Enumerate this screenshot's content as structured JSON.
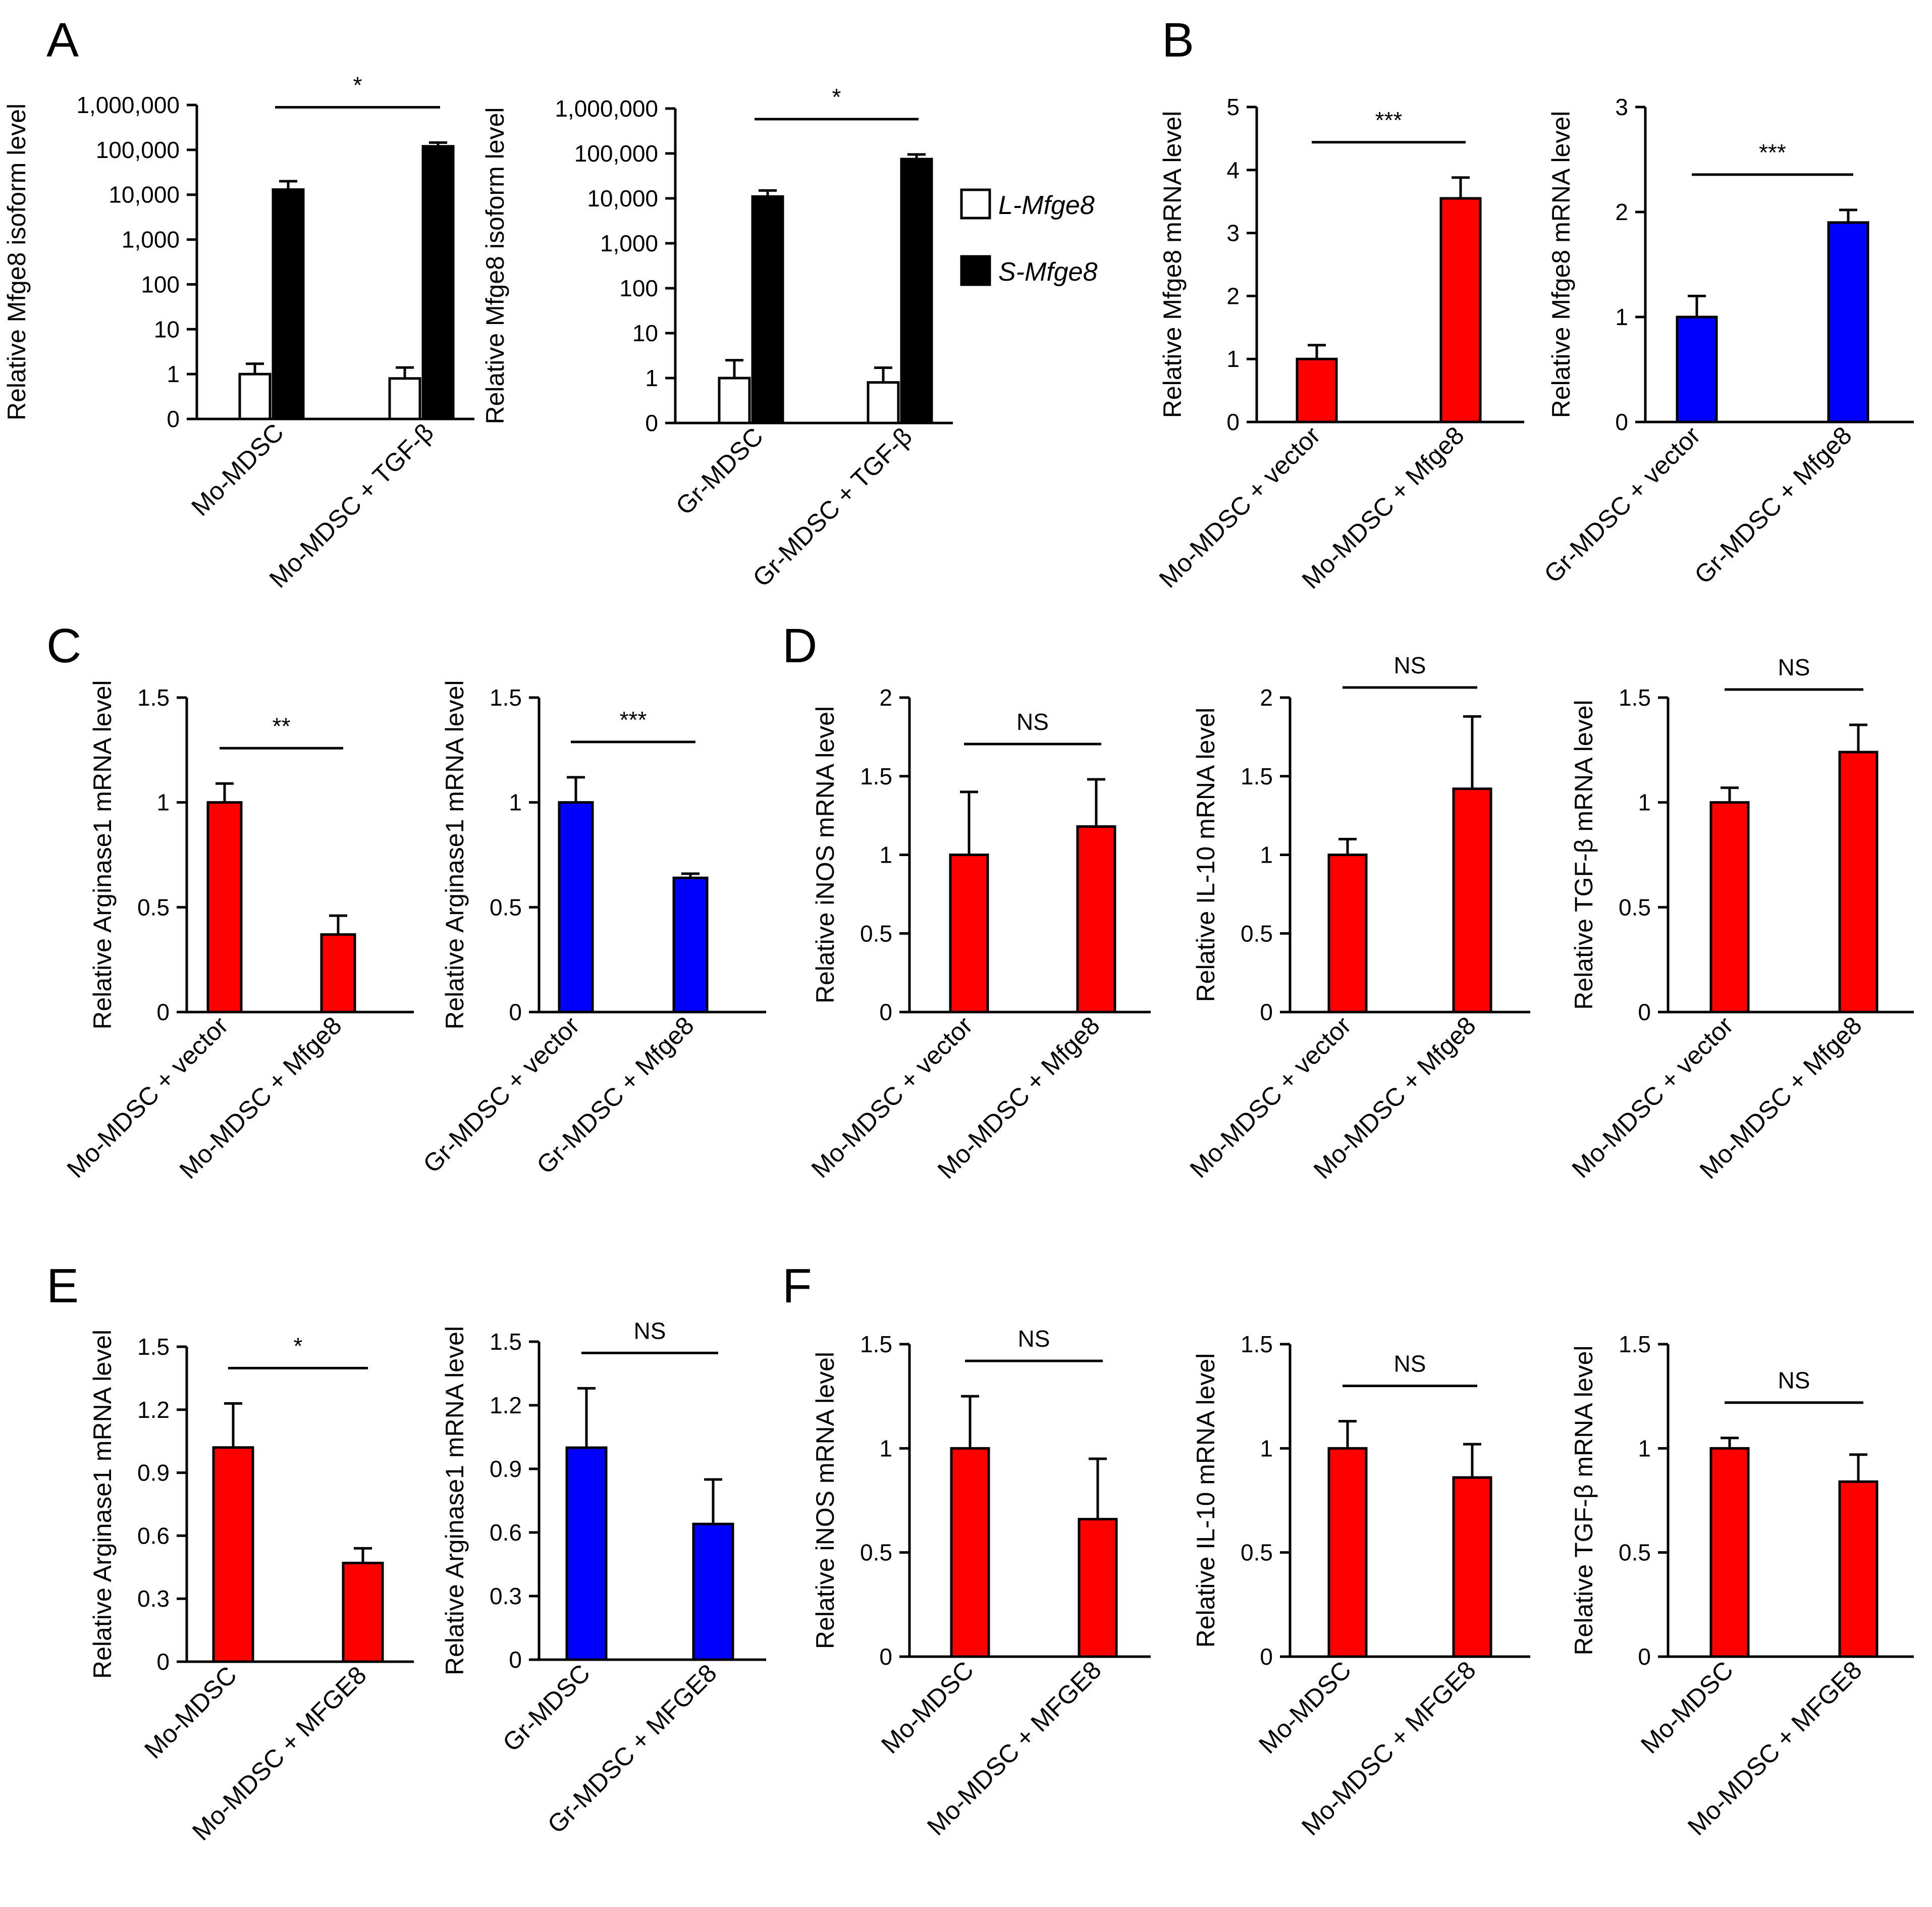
{
  "panel_letters": [
    "A",
    "B",
    "C",
    "D",
    "E",
    "F"
  ],
  "legend": [
    {
      "label": "L-Mfge8",
      "color": "#ffffff"
    },
    {
      "label": "S-Mfge8",
      "color": "#000000"
    }
  ],
  "colors": {
    "red": "#ff0000",
    "blue": "#0000ff",
    "black": "#000000",
    "white": "#ffffff"
  },
  "chart_data": [
    {
      "panel": "A",
      "type": "bar",
      "scale": "log",
      "ylabel": "Relative Mfge8 isoform level",
      "categories": [
        "Mo-MDSC",
        "Mo-MDSC + TGF-β"
      ],
      "series": [
        {
          "name": "L-Mfge8",
          "color": "#ffffff",
          "values": [
            1,
            0.8
          ],
          "errors": [
            0.7,
            0.6
          ]
        },
        {
          "name": "S-Mfge8",
          "color": "#000000",
          "values": [
            13000,
            120000
          ],
          "errors": [
            7000,
            25000
          ]
        }
      ],
      "yticks": [
        0,
        1,
        10,
        100,
        1000,
        10000,
        100000,
        1000000
      ],
      "ytick_labels": [
        "0",
        "1",
        "10",
        "100",
        "1,000",
        "10,000",
        "100,000",
        "1,000,000"
      ],
      "significance": "*"
    },
    {
      "panel": "A",
      "type": "bar",
      "scale": "log",
      "ylabel": "Relative Mfge8 isoform level",
      "categories": [
        "Gr-MDSC",
        "Gr-MDSC + TGF-β"
      ],
      "series": [
        {
          "name": "L-Mfge8",
          "color": "#ffffff",
          "values": [
            1,
            0.8
          ],
          "errors": [
            1.5,
            0.9
          ]
        },
        {
          "name": "S-Mfge8",
          "color": "#000000",
          "values": [
            11000,
            75000
          ],
          "errors": [
            4000,
            20000
          ]
        }
      ],
      "yticks": [
        0,
        1,
        10,
        100,
        1000,
        10000,
        100000,
        1000000
      ],
      "ytick_labels": [
        "0",
        "1",
        "10",
        "100",
        "1,000",
        "10,000",
        "100,000",
        "1,000,000"
      ],
      "significance": "*"
    },
    {
      "panel": "B",
      "type": "bar",
      "ylabel": "Relative Mfge8 mRNA level",
      "categories": [
        "Mo-MDSC + vector",
        "Mo-MDSC + Mfge8"
      ],
      "values": [
        1.0,
        3.55
      ],
      "errors": [
        0.22,
        0.33
      ],
      "color": "#ff0000",
      "ylim": [
        0,
        5
      ],
      "yticks": [
        0,
        1,
        2,
        3,
        4,
        5
      ],
      "ytick_labels": [
        "0",
        "1",
        "2",
        "3",
        "4",
        "5"
      ],
      "significance": "***"
    },
    {
      "panel": "B",
      "type": "bar",
      "ylabel": "Relative Mfge8 mRNA level",
      "categories": [
        "Gr-MDSC + vector",
        "Gr-MDSC + Mfge8"
      ],
      "values": [
        1.0,
        1.9
      ],
      "errors": [
        0.2,
        0.12
      ],
      "color": "#0000ff",
      "ylim": [
        0,
        3
      ],
      "yticks": [
        0,
        1,
        2,
        3
      ],
      "ytick_labels": [
        "0",
        "1",
        "2",
        "3"
      ],
      "significance": "***"
    },
    {
      "panel": "C",
      "type": "bar",
      "ylabel": "Relative Arginase1 mRNA level",
      "categories": [
        "Mo-MDSC + vector",
        "Mo-MDSC + Mfge8"
      ],
      "values": [
        1.0,
        0.37
      ],
      "errors": [
        0.09,
        0.09
      ],
      "color": "#ff0000",
      "ylim": [
        0,
        1.5
      ],
      "yticks": [
        0,
        0.5,
        1,
        1.5
      ],
      "ytick_labels": [
        "0",
        "0.5",
        "1",
        "1.5"
      ],
      "significance": "**"
    },
    {
      "panel": "C",
      "type": "bar",
      "ylabel": "Relative Arginase1 mRNA level",
      "categories": [
        "Gr-MDSC + vector",
        "Gr-MDSC + Mfge8"
      ],
      "values": [
        1.0,
        0.64
      ],
      "errors": [
        0.12,
        0.02
      ],
      "color": "#0000ff",
      "ylim": [
        0,
        1.5
      ],
      "yticks": [
        0,
        0.5,
        1,
        1.5
      ],
      "ytick_labels": [
        "0",
        "0.5",
        "1",
        "1.5"
      ],
      "significance": "***"
    },
    {
      "panel": "D",
      "type": "bar",
      "ylabel": "Relative iNOS mRNA level",
      "categories": [
        "Mo-MDSC + vector",
        "Mo-MDSC + Mfge8"
      ],
      "values": [
        1.0,
        1.18
      ],
      "errors": [
        0.4,
        0.3
      ],
      "color": "#ff0000",
      "ylim": [
        0,
        2
      ],
      "yticks": [
        0,
        0.5,
        1,
        1.5,
        2
      ],
      "ytick_labels": [
        "0",
        "0.5",
        "1",
        "1.5",
        "2"
      ],
      "significance": "NS"
    },
    {
      "panel": "D",
      "type": "bar",
      "ylabel": "Relative IL-10 mRNA level",
      "categories": [
        "Mo-MDSC + vector",
        "Mo-MDSC + Mfge8"
      ],
      "values": [
        1.0,
        1.42
      ],
      "errors": [
        0.1,
        0.46
      ],
      "color": "#ff0000",
      "ylim": [
        0,
        2
      ],
      "yticks": [
        0,
        0.5,
        1,
        1.5,
        2
      ],
      "ytick_labels": [
        "0",
        "0.5",
        "1",
        "1.5",
        "2"
      ],
      "significance": "NS"
    },
    {
      "panel": "D",
      "type": "bar",
      "ylabel": "Relative TGF-β mRNA level",
      "categories": [
        "Mo-MDSC + vector",
        "Mo-MDSC + Mfge8"
      ],
      "values": [
        1.0,
        1.24
      ],
      "errors": [
        0.07,
        0.13
      ],
      "color": "#ff0000",
      "ylim": [
        0,
        1.5
      ],
      "yticks": [
        0,
        0.5,
        1,
        1.5
      ],
      "ytick_labels": [
        "0",
        "0.5",
        "1",
        "1.5"
      ],
      "significance": "NS"
    },
    {
      "panel": "E",
      "type": "bar",
      "ylabel": "Relative Arginase1 mRNA level",
      "categories": [
        "Mo-MDSC",
        "Mo-MDSC + MFGE8"
      ],
      "values": [
        1.02,
        0.47
      ],
      "errors": [
        0.21,
        0.07
      ],
      "color": "#ff0000",
      "ylim": [
        0,
        1.5
      ],
      "yticks": [
        0,
        0.3,
        0.6,
        0.9,
        1.2,
        1.5
      ],
      "ytick_labels": [
        "0",
        "0.3",
        "0.6",
        "0.9",
        "1.2",
        "1.5"
      ],
      "significance": "*"
    },
    {
      "panel": "E",
      "type": "bar",
      "ylabel": "Relative Arginase1 mRNA level",
      "categories": [
        "Gr-MDSC",
        "Gr-MDSC + MFGE8"
      ],
      "values": [
        1.0,
        0.64
      ],
      "errors": [
        0.28,
        0.21
      ],
      "color": "#0000ff",
      "ylim": [
        0,
        1.5
      ],
      "yticks": [
        0,
        0.3,
        0.6,
        0.9,
        1.2,
        1.5
      ],
      "ytick_labels": [
        "0",
        "0.3",
        "0.6",
        "0.9",
        "1.2",
        "1.5"
      ],
      "significance": "NS"
    },
    {
      "panel": "F",
      "type": "bar",
      "ylabel": "Relative iNOS mRNA level",
      "categories": [
        "Mo-MDSC",
        "Mo-MDSC + MFGE8"
      ],
      "values": [
        1.0,
        0.66
      ],
      "errors": [
        0.25,
        0.29
      ],
      "color": "#ff0000",
      "ylim": [
        0,
        1.5
      ],
      "yticks": [
        0,
        0.5,
        1,
        1.5
      ],
      "ytick_labels": [
        "0",
        "0.5",
        "1",
        "1.5"
      ],
      "significance": "NS"
    },
    {
      "panel": "F",
      "type": "bar",
      "ylabel": "Relative IL-10 mRNA level",
      "categories": [
        "Mo-MDSC",
        "Mo-MDSC + MFGE8"
      ],
      "values": [
        1.0,
        0.86
      ],
      "errors": [
        0.13,
        0.16
      ],
      "color": "#ff0000",
      "ylim": [
        0,
        1.5
      ],
      "yticks": [
        0,
        0.5,
        1,
        1.5
      ],
      "ytick_labels": [
        "0",
        "0.5",
        "1",
        "1.5"
      ],
      "significance": "NS"
    },
    {
      "panel": "F",
      "type": "bar",
      "ylabel": "Relative TGF-β mRNA level",
      "categories": [
        "Mo-MDSC",
        "Mo-MDSC + MFGE8"
      ],
      "values": [
        1.0,
        0.84
      ],
      "errors": [
        0.05,
        0.13
      ],
      "color": "#ff0000",
      "ylim": [
        0,
        1.5
      ],
      "yticks": [
        0,
        0.5,
        1,
        1.5
      ],
      "ytick_labels": [
        "0",
        "0.5",
        "1",
        "1.5"
      ],
      "significance": "NS"
    }
  ]
}
